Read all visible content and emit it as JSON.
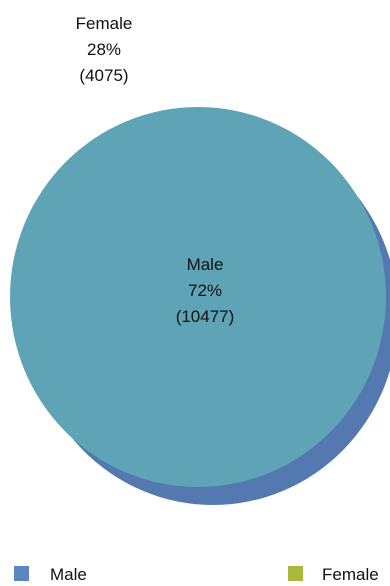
{
  "chart_data": {
    "type": "pie",
    "title": "",
    "slices": [
      {
        "name": "Male",
        "percent": 72,
        "count": 10477,
        "percent_label": "72%",
        "count_label": "(10477)"
      },
      {
        "name": "Female",
        "percent": 28,
        "count": 4075,
        "percent_label": "28%",
        "count_label": "(4075)"
      }
    ],
    "legend": {
      "position": "bottom",
      "entries": [
        {
          "label": "Male",
          "color": "#5b86c1"
        },
        {
          "label": "Female",
          "color": "#a8b93b"
        }
      ]
    },
    "colors": {
      "pie_face": "#5fa3b6",
      "pie_shadow": "#5479b0"
    }
  }
}
